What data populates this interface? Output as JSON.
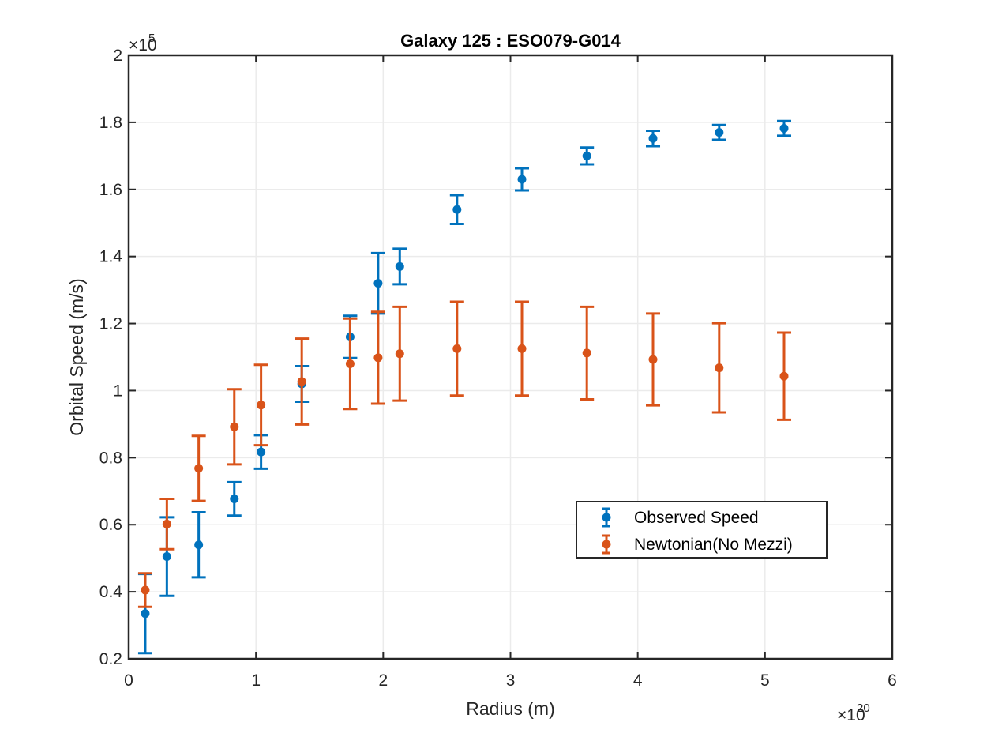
{
  "chart_data": {
    "type": "scatter",
    "title": "Galaxy 125 : ESO079-G014",
    "xlabel": "Radius (m)",
    "ylabel": "Orbital Speed (m/s)",
    "x_multiplier": "×10",
    "x_exponent": "20",
    "y_multiplier": "×10",
    "y_exponent": "5",
    "xlim": [
      0,
      6
    ],
    "ylim": [
      0.2,
      2
    ],
    "x_ticks": [
      "0",
      "1",
      "2",
      "3",
      "4",
      "5",
      "6"
    ],
    "y_ticks": [
      "0.2",
      "0.4",
      "0.6",
      "0.8",
      "1",
      "1.2",
      "1.4",
      "1.6",
      "1.8",
      "2"
    ],
    "grid": true,
    "legend_position": "lower-right",
    "series": [
      {
        "name": "Observed Speed",
        "color": "#0072BD",
        "x": [
          0.13,
          0.3,
          0.55,
          0.83,
          1.04,
          1.36,
          1.74,
          1.96,
          2.13,
          2.58,
          3.09,
          3.6,
          4.12,
          4.64,
          5.15
        ],
        "y": [
          0.335,
          0.505,
          0.54,
          0.677,
          0.817,
          1.02,
          1.16,
          1.32,
          1.37,
          1.54,
          1.63,
          1.7,
          1.752,
          1.77,
          1.782
        ],
        "err": [
          0.118,
          0.117,
          0.097,
          0.05,
          0.05,
          0.053,
          0.063,
          0.09,
          0.053,
          0.043,
          0.033,
          0.025,
          0.023,
          0.022,
          0.022
        ]
      },
      {
        "name": "Newtonian(No Mezzi)",
        "color": "#D95319",
        "x": [
          0.13,
          0.3,
          0.55,
          0.83,
          1.04,
          1.36,
          1.74,
          1.96,
          2.13,
          2.58,
          3.09,
          3.6,
          4.12,
          4.64,
          5.15
        ],
        "y": [
          0.405,
          0.602,
          0.768,
          0.892,
          0.957,
          1.027,
          1.08,
          1.098,
          1.11,
          1.125,
          1.125,
          1.112,
          1.093,
          1.068,
          1.043
        ],
        "err": [
          0.05,
          0.075,
          0.097,
          0.112,
          0.12,
          0.128,
          0.135,
          0.137,
          0.14,
          0.14,
          0.14,
          0.138,
          0.137,
          0.133,
          0.13
        ]
      }
    ]
  }
}
